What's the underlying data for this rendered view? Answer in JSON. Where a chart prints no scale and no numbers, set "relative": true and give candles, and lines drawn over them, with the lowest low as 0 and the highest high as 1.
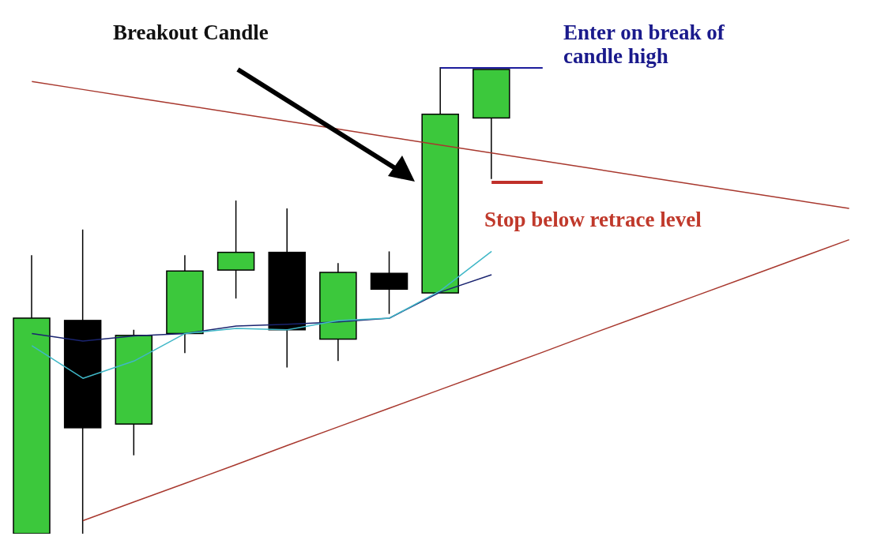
{
  "chart_data": {
    "type": "candlestick",
    "relative": true,
    "categories": [
      null,
      null,
      null,
      null,
      null,
      null,
      null,
      null,
      null,
      null,
      null,
      null,
      null,
      null,
      null,
      null,
      null
    ],
    "ohlc": [
      [
        0,
        0.597,
        0,
        0.462
      ],
      [
        0.457,
        0.652,
        0,
        0.227
      ],
      [
        0.235,
        0.437,
        0.168,
        0.425
      ],
      [
        0.429,
        0.597,
        0.387,
        0.563
      ],
      [
        0.565,
        0.714,
        0.504,
        0.603
      ],
      [
        0.603,
        0.697,
        0.356,
        0.437
      ],
      [
        0.417,
        0.58,
        0.37,
        0.56
      ],
      [
        0.558,
        0.605,
        0.471,
        0.524
      ],
      [
        0.516,
        1,
        0.516,
        0.899
      ],
      [
        0.891,
        0.995,
        0.76,
        0.995
      ],
      null,
      null,
      null,
      null,
      null,
      null,
      null
    ],
    "colors": [
      "#3cc83c",
      "#000000",
      "#3cc83c",
      "#3cc83c",
      "#3cc83c",
      "#000000",
      "#3cc83c",
      "#000000",
      "#3cc83c",
      "#3cc83c",
      null,
      null,
      null,
      null,
      null,
      null,
      null
    ],
    "series": [
      {
        "type": "line",
        "color": "#a8382e",
        "values": [
          0.969,
          0.952,
          0.935,
          0.918,
          0.901,
          0.884,
          0.867,
          0.85,
          0.833,
          0.816,
          0.799,
          0.782,
          0.765,
          0.748,
          0.731,
          0.714,
          0.697
        ]
      },
      {
        "type": "line",
        "color": "#a8382e",
        "values": [
          null,
          0.028,
          0.068,
          0.108,
          0.148,
          0.189,
          0.229,
          0.269,
          0.309,
          0.349,
          0.389,
          0.43,
          0.47,
          0.51,
          0.55,
          0.59,
          0.63
        ]
      },
      {
        "type": "line",
        "color": "#1a2470",
        "values": [
          0.429,
          0.413,
          0.424,
          0.429,
          0.445,
          0.449,
          0.454,
          0.462,
          0.518,
          0.555,
          null,
          null,
          null,
          null,
          null,
          null,
          null
        ]
      },
      {
        "type": "line",
        "color": "#3fb7c7",
        "values": [
          0.403,
          0.333,
          0.37,
          0.429,
          0.44,
          0.437,
          0.457,
          0.462,
          0.521,
          0.605,
          null,
          null,
          null,
          null,
          null,
          null,
          null
        ]
      },
      {
        "type": "line",
        "color": "#1c1c9c",
        "values": [
          null,
          null,
          null,
          null,
          null,
          null,
          null,
          null,
          1,
          1,
          1,
          null,
          null,
          null,
          null,
          null,
          null
        ]
      },
      {
        "type": "line",
        "color": "#c0302a",
        "values": [
          null,
          null,
          null,
          null,
          null,
          null,
          null,
          null,
          null,
          0.753,
          0.753,
          null,
          null,
          null,
          null,
          null,
          null
        ]
      }
    ],
    "annotations": [
      "Breakout Candle",
      "Enter on break of candle high",
      "Stop below retrace level"
    ]
  }
}
